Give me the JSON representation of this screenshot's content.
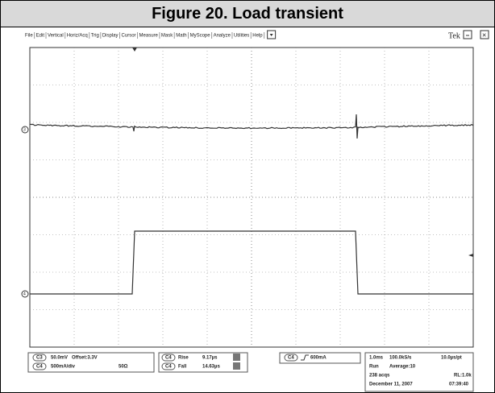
{
  "header": {
    "title": "Figure 20. Load transient"
  },
  "menu": {
    "items": [
      "File",
      "Edit",
      "Vertical",
      "Horiz/Acq",
      "Trig",
      "Display",
      "Cursor",
      "Measure",
      "Mask",
      "Math",
      "MyScope",
      "Analyze",
      "Utilities",
      "Help"
    ],
    "brand": "Tek"
  },
  "markers": {
    "ch3": "3",
    "ch4": "4"
  },
  "readouts": {
    "ch3": {
      "channel": "C3",
      "scale": "50.0mV",
      "offset": "Offset:3.3V"
    },
    "ch4": {
      "channel": "C4",
      "scale": "500mA/div",
      "impedance": "50Ω"
    },
    "rise": {
      "channel": "C4",
      "label": "Rise",
      "value": "9.17µs"
    },
    "fall": {
      "channel": "C4",
      "label": "Fall",
      "value": "14.63µs"
    },
    "trigger": {
      "channel": "C4",
      "level": "600mA"
    },
    "acq": {
      "timebase": "1.0ms",
      "rate": "100.0kS/s",
      "resolution": "10.0µs/pt",
      "state": "Run",
      "average": "Average:10",
      "count": "238 acqs",
      "length": "RL:1.0k",
      "date": "December 11, 2007",
      "time": "07:39:40"
    }
  }
}
